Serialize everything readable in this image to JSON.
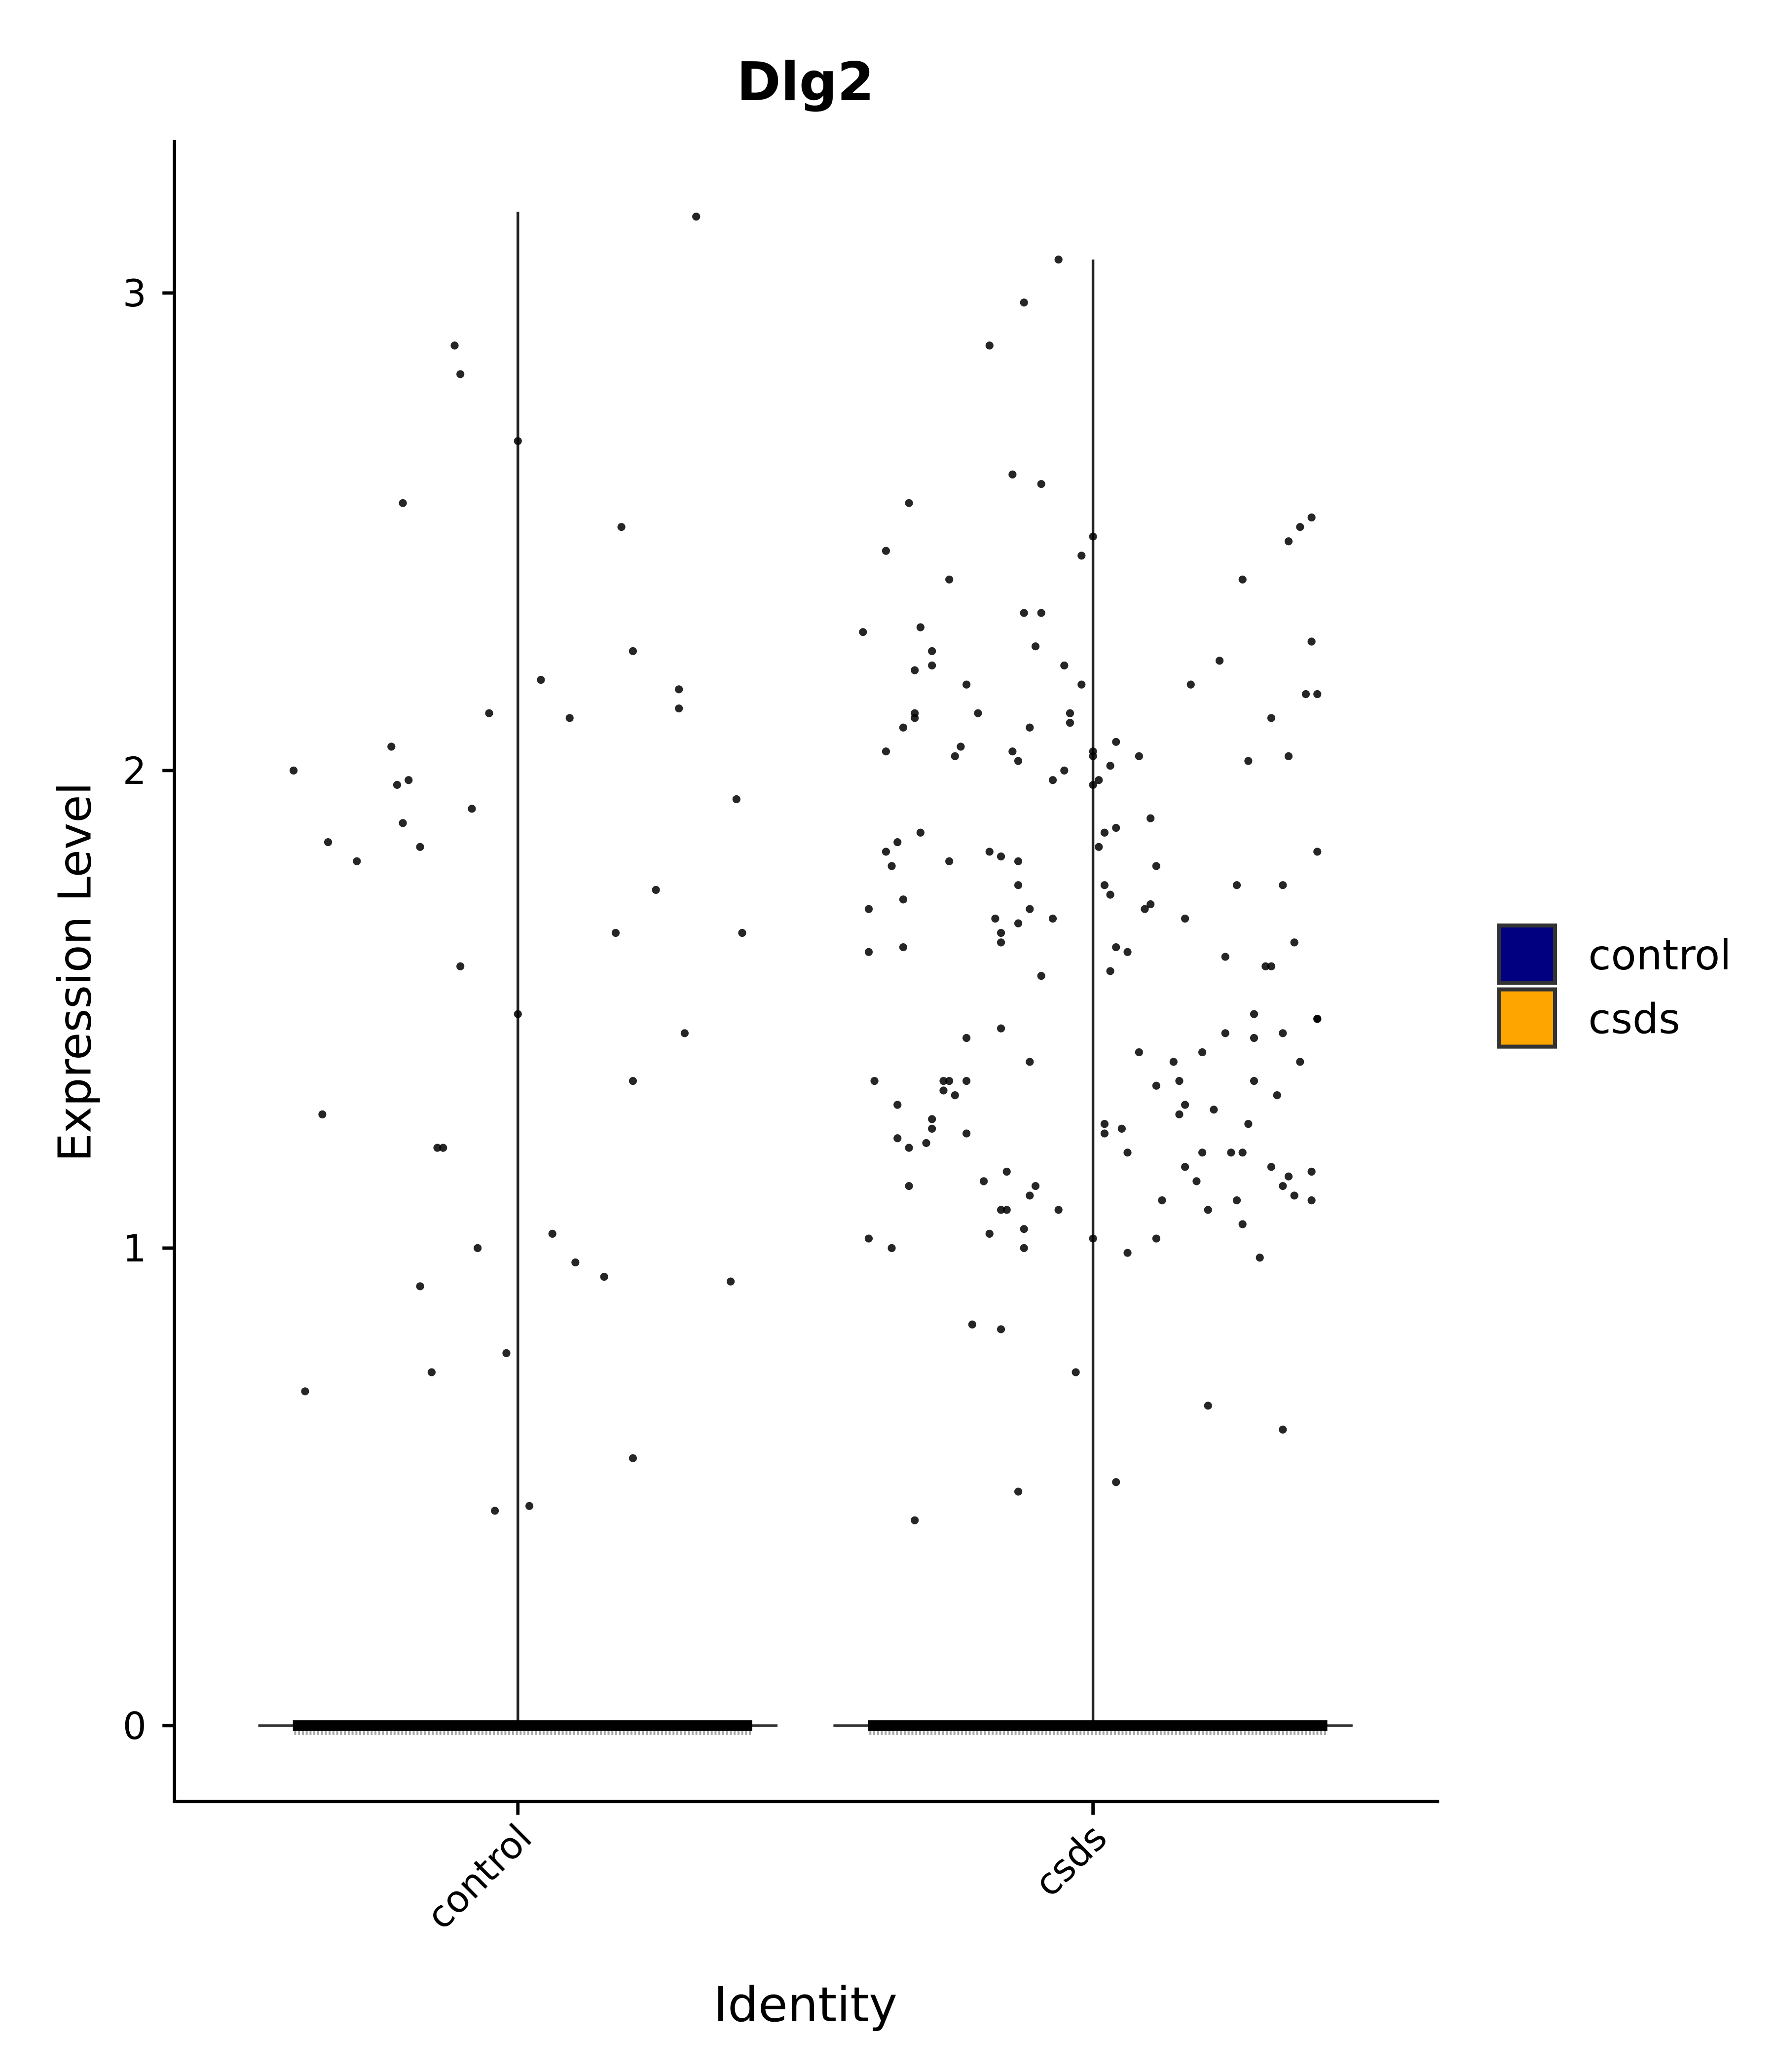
{
  "chart_data": {
    "type": "violin",
    "title": "Dlg2",
    "xlabel": "Identity",
    "ylabel": "Expression Level",
    "categories": [
      "control",
      "csds"
    ],
    "ylim": [
      -0.16,
      3.34
    ],
    "yticks": [
      0,
      1,
      2,
      3
    ],
    "ytick_labels": [
      "0",
      "1",
      "2",
      "3"
    ],
    "grid": false,
    "legend": {
      "placement": "right",
      "entries": [
        {
          "label": "control",
          "color": "#000080"
        },
        {
          "label": "csds",
          "color": "#FFA500"
        }
      ]
    },
    "violins": [
      {
        "category": "control",
        "min": 0,
        "max": 3.17,
        "mode": 0,
        "fill": "#000080"
      },
      {
        "category": "csds",
        "min": 0,
        "max": 3.07,
        "mode": 0,
        "fill": "#FFA500"
      }
    ],
    "note_zero": "majority of cells in both groups at expression 0",
    "series": [
      {
        "name": "control",
        "points": [
          [
            0.61,
            2.0
          ],
          [
            0.63,
            0.7
          ],
          [
            0.66,
            1.28
          ],
          [
            0.67,
            1.85
          ],
          [
            0.72,
            1.81
          ],
          [
            0.78,
            2.05
          ],
          [
            0.8,
            2.56
          ],
          [
            0.79,
            1.97
          ],
          [
            0.81,
            1.98
          ],
          [
            0.8,
            1.89
          ],
          [
            0.83,
            1.84
          ],
          [
            0.83,
            0.92
          ],
          [
            0.85,
            0.74
          ],
          [
            0.86,
            1.21
          ],
          [
            0.87,
            1.21
          ],
          [
            0.89,
            2.89
          ],
          [
            0.9,
            2.83
          ],
          [
            0.9,
            1.59
          ],
          [
            0.92,
            1.92
          ],
          [
            0.93,
            1.0
          ],
          [
            0.95,
            2.12
          ],
          [
            0.96,
            0.45
          ],
          [
            0.98,
            0.78
          ],
          [
            1.0,
            2.69
          ],
          [
            1.0,
            1.49
          ],
          [
            1.02,
            0.46
          ],
          [
            1.04,
            2.19
          ],
          [
            1.06,
            1.03
          ],
          [
            1.09,
            2.11
          ],
          [
            1.1,
            0.97
          ],
          [
            1.15,
            0.94
          ],
          [
            1.17,
            1.66
          ],
          [
            1.18,
            2.51
          ],
          [
            1.2,
            1.35
          ],
          [
            1.2,
            0.56
          ],
          [
            1.2,
            2.25
          ],
          [
            1.24,
            1.75
          ],
          [
            1.28,
            2.17
          ],
          [
            1.28,
            2.13
          ],
          [
            1.29,
            1.45
          ],
          [
            1.31,
            3.16
          ],
          [
            1.37,
            0.93
          ],
          [
            1.38,
            1.94
          ],
          [
            1.39,
            1.66
          ]
        ]
      },
      {
        "name": "csds",
        "points": [
          [
            1.6,
            2.29
          ],
          [
            1.61,
            1.71
          ],
          [
            1.61,
            1.62
          ],
          [
            1.61,
            1.02
          ],
          [
            1.62,
            1.35
          ],
          [
            1.64,
            2.46
          ],
          [
            1.64,
            2.04
          ],
          [
            1.64,
            1.83
          ],
          [
            1.65,
            1.8
          ],
          [
            1.65,
            1.0
          ],
          [
            1.66,
            1.85
          ],
          [
            1.66,
            1.3
          ],
          [
            1.66,
            1.23
          ],
          [
            1.67,
            1.73
          ],
          [
            1.67,
            1.63
          ],
          [
            1.67,
            2.09
          ],
          [
            1.68,
            1.13
          ],
          [
            1.68,
            1.21
          ],
          [
            1.68,
            2.56
          ],
          [
            1.69,
            0.43
          ],
          [
            1.69,
            2.21
          ],
          [
            1.69,
            2.11
          ],
          [
            1.69,
            2.12
          ],
          [
            1.7,
            1.87
          ],
          [
            1.7,
            2.3
          ],
          [
            1.71,
            1.22
          ],
          [
            1.72,
            2.25
          ],
          [
            1.72,
            2.22
          ],
          [
            1.72,
            1.25
          ],
          [
            1.72,
            1.27
          ],
          [
            1.74,
            1.35
          ],
          [
            1.74,
            1.33
          ],
          [
            1.75,
            1.35
          ],
          [
            1.75,
            1.81
          ],
          [
            1.75,
            2.4
          ],
          [
            1.76,
            2.03
          ],
          [
            1.76,
            1.32
          ],
          [
            1.77,
            2.05
          ],
          [
            1.78,
            1.35
          ],
          [
            1.78,
            2.18
          ],
          [
            1.78,
            1.44
          ],
          [
            1.78,
            1.24
          ],
          [
            1.79,
            0.84
          ],
          [
            1.8,
            2.12
          ],
          [
            1.81,
            1.14
          ],
          [
            1.82,
            2.89
          ],
          [
            1.82,
            1.83
          ],
          [
            1.82,
            1.03
          ],
          [
            1.83,
            1.69
          ],
          [
            1.84,
            0.83
          ],
          [
            1.84,
            1.46
          ],
          [
            1.84,
            1.64
          ],
          [
            1.84,
            1.08
          ],
          [
            1.84,
            1.82
          ],
          [
            1.84,
            1.66
          ],
          [
            1.85,
            1.16
          ],
          [
            1.86,
            2.62
          ],
          [
            1.85,
            1.08
          ],
          [
            1.86,
            2.04
          ],
          [
            1.87,
            0.49
          ],
          [
            1.87,
            2.02
          ],
          [
            1.87,
            1.81
          ],
          [
            1.87,
            1.68
          ],
          [
            1.88,
            1.0
          ],
          [
            1.87,
            1.76
          ],
          [
            1.88,
            2.98
          ],
          [
            1.88,
            2.33
          ],
          [
            1.88,
            1.04
          ],
          [
            1.89,
            1.11
          ],
          [
            1.89,
            2.09
          ],
          [
            1.89,
            1.39
          ],
          [
            1.89,
            1.71
          ],
          [
            1.9,
            2.26
          ],
          [
            1.9,
            1.13
          ],
          [
            1.91,
            2.33
          ],
          [
            1.91,
            1.57
          ],
          [
            1.91,
            2.6
          ],
          [
            1.93,
            1.98
          ],
          [
            1.93,
            1.69
          ],
          [
            1.94,
            3.07
          ],
          [
            1.94,
            1.08
          ],
          [
            1.95,
            2.22
          ],
          [
            1.95,
            2.0
          ],
          [
            1.96,
            2.12
          ],
          [
            1.96,
            2.1
          ],
          [
            1.97,
            0.74
          ],
          [
            1.98,
            2.18
          ],
          [
            1.98,
            2.45
          ],
          [
            2.0,
            2.49
          ],
          [
            2.0,
            2.04
          ],
          [
            2.0,
            1.02
          ],
          [
            2.0,
            2.03
          ],
          [
            2.0,
            1.97
          ],
          [
            2.01,
            1.84
          ],
          [
            2.01,
            1.98
          ],
          [
            2.02,
            1.24
          ],
          [
            2.04,
            0.51
          ],
          [
            2.02,
            1.26
          ],
          [
            2.02,
            1.87
          ],
          [
            2.02,
            1.76
          ],
          [
            2.03,
            2.01
          ],
          [
            2.03,
            1.74
          ],
          [
            2.03,
            1.58
          ],
          [
            2.04,
            1.63
          ],
          [
            2.04,
            2.06
          ],
          [
            2.04,
            1.88
          ],
          [
            2.05,
            1.25
          ],
          [
            2.06,
            0.99
          ],
          [
            2.06,
            1.62
          ],
          [
            2.06,
            1.2
          ],
          [
            2.08,
            2.03
          ],
          [
            2.08,
            1.41
          ],
          [
            2.09,
            1.71
          ],
          [
            2.1,
            1.9
          ],
          [
            2.1,
            1.72
          ],
          [
            2.11,
            1.34
          ],
          [
            2.11,
            1.8
          ],
          [
            2.11,
            1.02
          ],
          [
            2.12,
            1.1
          ],
          [
            2.14,
            1.39
          ],
          [
            2.15,
            1.35
          ],
          [
            2.15,
            1.28
          ],
          [
            2.16,
            1.3
          ],
          [
            2.16,
            1.69
          ],
          [
            2.16,
            1.17
          ],
          [
            2.17,
            2.18
          ],
          [
            2.18,
            1.14
          ],
          [
            2.19,
            1.2
          ],
          [
            2.19,
            1.41
          ],
          [
            2.2,
            0.67
          ],
          [
            2.2,
            1.08
          ],
          [
            2.21,
            1.29
          ],
          [
            2.22,
            2.23
          ],
          [
            2.23,
            1.45
          ],
          [
            2.23,
            1.61
          ],
          [
            2.24,
            1.2
          ],
          [
            2.25,
            1.1
          ],
          [
            2.25,
            1.76
          ],
          [
            2.26,
            2.4
          ],
          [
            2.26,
            1.05
          ],
          [
            2.26,
            1.2
          ],
          [
            2.27,
            2.02
          ],
          [
            2.27,
            1.26
          ],
          [
            2.28,
            1.49
          ],
          [
            2.28,
            1.35
          ],
          [
            2.28,
            1.44
          ],
          [
            2.29,
            0.98
          ],
          [
            2.3,
            1.59
          ],
          [
            2.31,
            1.17
          ],
          [
            2.31,
            1.59
          ],
          [
            2.31,
            2.11
          ],
          [
            2.32,
            1.32
          ],
          [
            2.33,
            1.13
          ],
          [
            2.33,
            1.45
          ],
          [
            2.33,
            1.76
          ],
          [
            2.33,
            0.62
          ],
          [
            2.34,
            2.48
          ],
          [
            2.34,
            2.03
          ],
          [
            2.34,
            1.15
          ],
          [
            2.35,
            1.64
          ],
          [
            2.35,
            1.11
          ],
          [
            2.36,
            1.39
          ],
          [
            2.36,
            2.51
          ],
          [
            2.37,
            2.16
          ],
          [
            2.38,
            2.53
          ],
          [
            2.38,
            1.1
          ],
          [
            2.38,
            1.16
          ],
          [
            2.38,
            2.27
          ],
          [
            2.39,
            1.48
          ],
          [
            2.39,
            2.16
          ],
          [
            2.39,
            1.83
          ],
          [
            2.39,
            1.48
          ]
        ]
      }
    ]
  }
}
